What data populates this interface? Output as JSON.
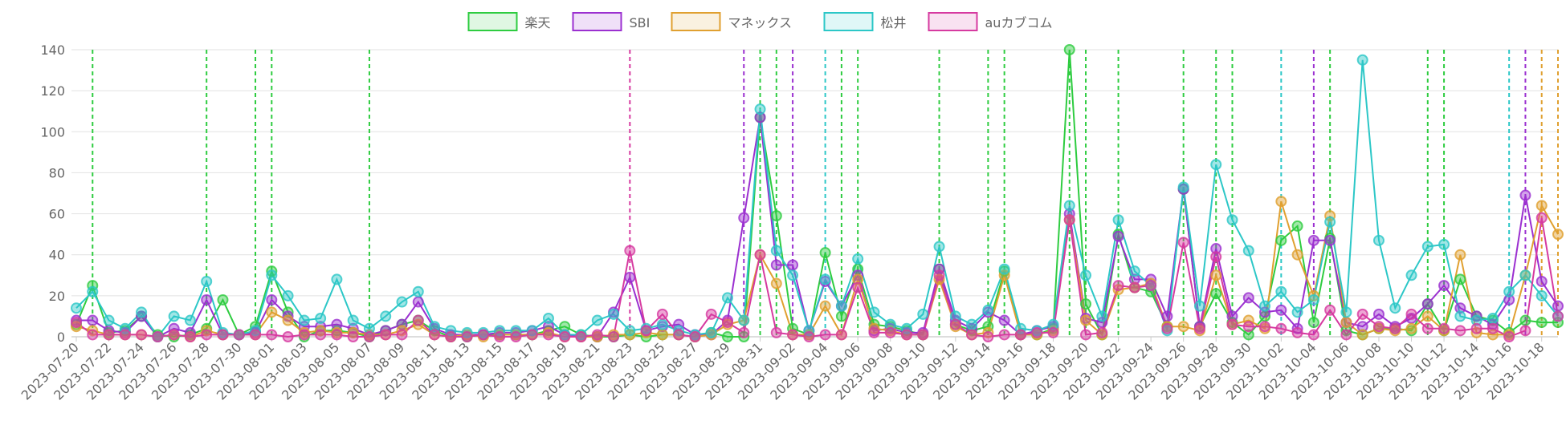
{
  "chart_data": {
    "type": "line",
    "categories": [
      "2023-07-20",
      null,
      "2023-07-22",
      null,
      "2023-07-24",
      null,
      "2023-07-26",
      null,
      "2023-07-28",
      null,
      "2023-07-30",
      null,
      "2023-08-01",
      null,
      "2023-08-03",
      null,
      "2023-08-05",
      null,
      "2023-08-07",
      null,
      "2023-08-09",
      null,
      "2023-08-11",
      null,
      "2023-08-13",
      null,
      "2023-08-15",
      null,
      "2023-08-17",
      null,
      "2023-08-19",
      null,
      "2023-08-21",
      null,
      "2023-08-23",
      null,
      "2023-08-25",
      null,
      "2023-08-27",
      null,
      "2023-08-29",
      null,
      "2023-08-31",
      null,
      "2023-09-02",
      null,
      "2023-09-04",
      null,
      "2023-09-06",
      null,
      "2023-09-08",
      null,
      "2023-09-10",
      null,
      "2023-09-12",
      null,
      "2023-09-14",
      null,
      "2023-09-16",
      null,
      "2023-09-18",
      null,
      "2023-09-20",
      null,
      "2023-09-22",
      null,
      "2023-09-24",
      null,
      "2023-09-26",
      null,
      "2023-09-28",
      null,
      "2023-09-30",
      null,
      "2023-10-02",
      null,
      "2023-10-04",
      null,
      "2023-10-06",
      null,
      "2023-10-08",
      null,
      "2023-10-10",
      null,
      "2023-10-12",
      null,
      "2023-10-14",
      null,
      "2023-10-16",
      null,
      "2023-10-18",
      null
    ],
    "series": [
      {
        "name": "楽天",
        "color": "#2ecc40",
        "values": [
          6,
          25,
          2,
          3,
          10,
          1,
          0,
          1,
          4,
          18,
          1,
          5,
          32,
          12,
          0,
          3,
          3,
          2,
          0,
          3,
          6,
          8,
          3,
          0,
          0,
          1,
          1,
          1,
          1,
          3,
          5,
          1,
          0,
          0,
          1,
          0,
          1,
          1,
          0,
          2,
          0,
          0,
          107,
          59,
          4,
          1,
          41,
          10,
          33,
          6,
          5,
          3,
          1,
          33,
          6,
          3,
          5,
          32,
          1,
          1,
          4,
          140,
          16,
          1,
          50,
          24,
          22,
          5,
          72,
          5,
          21,
          7,
          1,
          10,
          47,
          54,
          7,
          48,
          3,
          1,
          4,
          4,
          3,
          16,
          3,
          28,
          10,
          8,
          2,
          8,
          7,
          7
        ],
        "event_dates": [
          "2023-07-21",
          "2023-07-28",
          "2023-07-31",
          "2023-08-01",
          "2023-08-07",
          "2023-08-31",
          "2023-09-01",
          "2023-09-05",
          "2023-09-06",
          "2023-09-11",
          "2023-09-14",
          "2023-09-15",
          "2023-09-19",
          "2023-09-20",
          "2023-09-22",
          "2023-09-26",
          "2023-09-28",
          "2023-09-29",
          "2023-10-05",
          "2023-10-11",
          "2023-10-12"
        ]
      },
      {
        "name": "SBI",
        "color": "#9b30d0",
        "values": [
          8,
          8,
          3,
          2,
          10,
          0,
          4,
          2,
          18,
          1,
          1,
          2,
          18,
          10,
          5,
          5,
          6,
          4,
          1,
          3,
          6,
          17,
          4,
          1,
          1,
          1,
          2,
          2,
          3,
          5,
          1,
          0,
          0,
          12,
          29,
          3,
          5,
          6,
          1,
          1,
          8,
          58,
          107,
          35,
          35,
          3,
          27,
          15,
          30,
          3,
          4,
          2,
          2,
          33,
          8,
          4,
          12,
          8,
          1,
          3,
          5,
          60,
          9,
          7,
          49,
          28,
          28,
          10,
          72,
          5,
          43,
          10,
          19,
          12,
          13,
          4,
          47,
          47,
          7,
          5,
          11,
          5,
          9,
          16,
          25,
          14,
          10,
          6,
          18,
          69,
          27,
          15
        ],
        "event_dates": [
          "2023-08-30",
          "2023-09-02",
          "2023-10-04",
          "2023-10-17"
        ]
      },
      {
        "name": "マネックス",
        "color": "#e0a030",
        "values": [
          5,
          3,
          1,
          1,
          1,
          0,
          1,
          0,
          3,
          1,
          1,
          1,
          12,
          8,
          2,
          3,
          2,
          2,
          1,
          1,
          3,
          6,
          1,
          0,
          1,
          0,
          1,
          1,
          1,
          2,
          0,
          0,
          0,
          1,
          1,
          2,
          1,
          1,
          0,
          1,
          6,
          8,
          40,
          26,
          1,
          1,
          15,
          1,
          28,
          4,
          3,
          1,
          1,
          28,
          5,
          1,
          2,
          30,
          1,
          1,
          3,
          57,
          8,
          1,
          23,
          24,
          26,
          5,
          5,
          3,
          30,
          6,
          8,
          4,
          66,
          40,
          20,
          59,
          7,
          1,
          4,
          3,
          4,
          10,
          3,
          40,
          2,
          1,
          1,
          30,
          64,
          50
        ],
        "event_dates": [
          "2023-10-18",
          "2023-10-19"
        ]
      },
      {
        "name": "松井",
        "color": "#2cc7c7",
        "values": [
          14,
          22,
          8,
          4,
          12,
          0,
          10,
          8,
          27,
          2,
          1,
          3,
          30,
          20,
          8,
          9,
          28,
          8,
          4,
          10,
          17,
          22,
          5,
          3,
          2,
          2,
          3,
          3,
          3,
          9,
          1,
          1,
          8,
          11,
          3,
          4,
          6,
          3,
          1,
          2,
          19,
          8,
          111,
          42,
          30,
          3,
          28,
          15,
          38,
          12,
          6,
          4,
          11,
          44,
          10,
          6,
          13,
          33,
          4,
          3,
          6,
          64,
          30,
          10,
          57,
          32,
          25,
          3,
          73,
          15,
          84,
          57,
          42,
          15,
          22,
          12,
          18,
          56,
          12,
          135,
          47,
          14,
          30,
          44,
          45,
          10,
          8,
          9,
          22,
          30,
          20,
          10
        ],
        "event_dates": [
          "2023-09-04",
          "2023-10-02",
          "2023-10-16"
        ]
      },
      {
        "name": "auカブコム",
        "color": "#d63aa0",
        "values": [
          7,
          1,
          1,
          1,
          1,
          0,
          1,
          0,
          1,
          1,
          1,
          1,
          1,
          0,
          1,
          1,
          1,
          0,
          0,
          1,
          1,
          8,
          1,
          0,
          0,
          1,
          0,
          0,
          1,
          1,
          0,
          0,
          1,
          0,
          42,
          3,
          11,
          1,
          0,
          11,
          7,
          2,
          40,
          2,
          1,
          0,
          1,
          1,
          24,
          2,
          2,
          1,
          1,
          30,
          6,
          1,
          0,
          1,
          1,
          2,
          2,
          57,
          1,
          2,
          25,
          24,
          25,
          4,
          46,
          4,
          39,
          6,
          5,
          5,
          4,
          2,
          1,
          13,
          1,
          11,
          5,
          4,
          11,
          4,
          4,
          3,
          4,
          4,
          0,
          3,
          58,
          10
        ],
        "event_dates": [
          "2023-08-23"
        ]
      }
    ],
    "ylim": [
      0,
      140
    ],
    "yticks": [
      0,
      20,
      40,
      60,
      80,
      100,
      120,
      140
    ],
    "grid": true,
    "legend": "top"
  }
}
